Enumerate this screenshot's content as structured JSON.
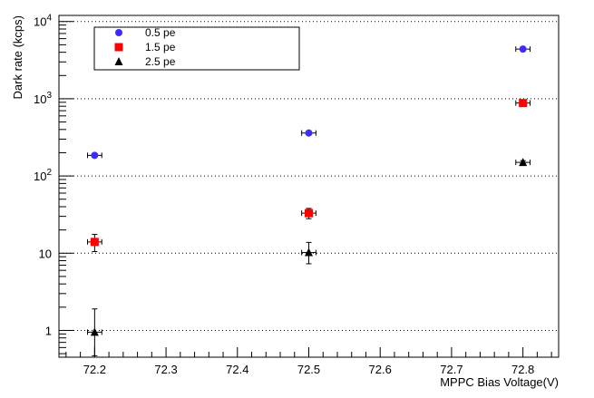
{
  "chart_data": {
    "type": "scatter",
    "title": "",
    "xlabel": "MPPC Bias Voltage(V)",
    "ylabel": "Dark rate (kcps)",
    "xlim": [
      72.15,
      72.85
    ],
    "ylim": [
      0.45,
      12000
    ],
    "yscale": "log",
    "grid": "horizontal dotted at decades",
    "legend_position": "top-left",
    "x_ticks": [
      72.2,
      72.3,
      72.4,
      72.5,
      72.6,
      72.7,
      72.8
    ],
    "x_tick_labels": [
      "72.2",
      "72.3",
      "72.4",
      "72.5",
      "72.6",
      "72.7",
      "72.8"
    ],
    "y_ticks": [
      1,
      10,
      100,
      1000,
      10000
    ],
    "y_tick_labels": [
      {
        "base": "1",
        "exp": ""
      },
      {
        "base": "10",
        "exp": ""
      },
      {
        "base": "10",
        "exp": "2"
      },
      {
        "base": "10",
        "exp": "3"
      },
      {
        "base": "10",
        "exp": "4"
      }
    ],
    "series": [
      {
        "name": "0.5 pe",
        "marker": "circle",
        "color": "#3d2bff",
        "points": [
          {
            "x": 72.2,
            "y": 185,
            "xerr": 0.01,
            "ylo": 175,
            "yhi": 195
          },
          {
            "x": 72.5,
            "y": 360,
            "xerr": 0.01,
            "ylo": 345,
            "yhi": 375
          },
          {
            "x": 72.8,
            "y": 4400,
            "xerr": 0.01,
            "ylo": 4250,
            "yhi": 4550
          }
        ]
      },
      {
        "name": "1.5 pe",
        "marker": "square",
        "color": "#ff0000",
        "points": [
          {
            "x": 72.2,
            "y": 14,
            "xerr": 0.01,
            "ylo": 10.5,
            "yhi": 17.5
          },
          {
            "x": 72.5,
            "y": 33,
            "xerr": 0.01,
            "ylo": 28,
            "yhi": 38
          },
          {
            "x": 72.8,
            "y": 880,
            "xerr": 0.01,
            "ylo": 840,
            "yhi": 920
          }
        ]
      },
      {
        "name": "2.5 pe",
        "marker": "triangle",
        "color": "#000000",
        "points": [
          {
            "x": 72.2,
            "y": 0.95,
            "xerr": 0.01,
            "ylo": 0.47,
            "yhi": 1.9
          },
          {
            "x": 72.5,
            "y": 10.2,
            "xerr": 0.01,
            "ylo": 7.3,
            "yhi": 13.8
          },
          {
            "x": 72.8,
            "y": 150,
            "xerr": 0.01,
            "ylo": 142,
            "yhi": 158
          }
        ]
      }
    ]
  }
}
